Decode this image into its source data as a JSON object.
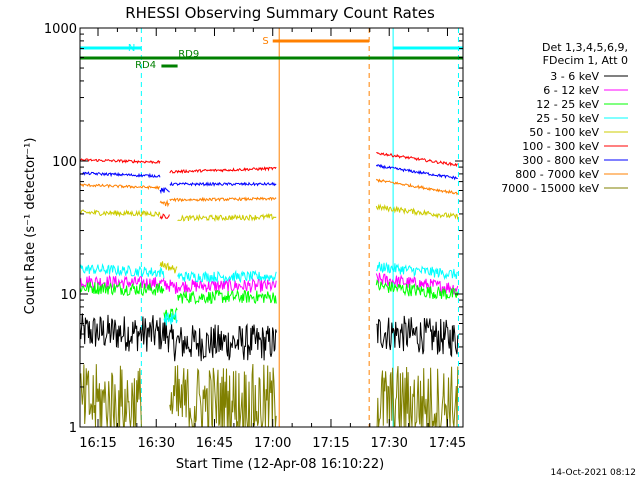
{
  "chart_data": {
    "type": "line",
    "title": "RHESSI Observing Summary Count Rates",
    "xlabel": "Start Time (12-Apr-08 16:10:22)",
    "ylabel": "Count Rate (s⁻¹ detector⁻¹)",
    "y_scale": "log",
    "ylim": [
      1,
      1000
    ],
    "xlim": [
      "16:10:22",
      "17:49:00"
    ],
    "x_ticks": [
      "16:15",
      "16:30",
      "16:45",
      "17:00",
      "17:15",
      "17:30",
      "17:45"
    ],
    "y_ticks": [
      "1",
      "10",
      "100",
      "1000"
    ],
    "footer_date": "14-Oct-2021 08:12",
    "legend": {
      "header": [
        "Det 1,3,4,5,6,9,",
        "FDecim 1, Att 0"
      ],
      "placement": "right"
    },
    "flags": {
      "N": {
        "label": "N",
        "color": "#00ffff",
        "intervals": [
          [
            "16:10:22",
            "16:26:10"
          ],
          [
            "17:31:00",
            "17:49:00"
          ]
        ]
      },
      "S": {
        "label": "S",
        "color": "#ff8000",
        "intervals": [
          [
            "17:00:00",
            "17:24:50"
          ]
        ]
      },
      "RD4": {
        "label": "RD4",
        "color": "#008000",
        "intervals": [
          [
            "16:31:20",
            "16:35:30"
          ]
        ]
      },
      "RD9": {
        "label": "RD9",
        "color": "#008000",
        "intervals": [
          [
            "16:10:22",
            "17:49:00"
          ]
        ]
      }
    },
    "vertical_markers": [
      {
        "time": "16:10:22",
        "color": "#00ffff",
        "style": "solid"
      },
      {
        "time": "16:26:10",
        "color": "#00ffff",
        "style": "dashed"
      },
      {
        "time": "17:01:40",
        "color": "#ff8000",
        "style": "solid"
      },
      {
        "time": "17:24:50",
        "color": "#ff8000",
        "style": "dashed"
      },
      {
        "time": "17:31:00",
        "color": "#00ffff",
        "style": "solid"
      },
      {
        "time": "17:47:50",
        "color": "#00ffff",
        "style": "dashed"
      }
    ],
    "series": [
      {
        "name": "3 - 6 keV",
        "color": "#000000",
        "segments": [
          {
            "t0": "16:10:22",
            "t1": "16:33:10",
            "v0": 5.2,
            "v1": 5.0,
            "noise": 0.14
          },
          {
            "t0": "16:33:10",
            "t1": "17:01:00",
            "v0": 4.3,
            "v1": 4.3,
            "noise": 0.14
          },
          {
            "t0": "17:26:40",
            "t1": "17:47:50",
            "v0": 5.2,
            "v1": 4.6,
            "noise": 0.14
          }
        ]
      },
      {
        "name": "6 - 12 keV",
        "color": "#ff00ff",
        "segments": [
          {
            "t0": "16:10:22",
            "t1": "16:32:00",
            "v0": 12.5,
            "v1": 12.0,
            "noise": 0.05
          },
          {
            "t0": "16:32:00",
            "t1": "16:35:30",
            "v0": 12.0,
            "v1": 11.0,
            "noise": 0.05
          },
          {
            "t0": "16:35:30",
            "t1": "17:01:00",
            "v0": 11.5,
            "v1": 11.5,
            "noise": 0.05
          },
          {
            "t0": "17:26:40",
            "t1": "17:47:50",
            "v0": 13.0,
            "v1": 11.0,
            "noise": 0.05
          }
        ]
      },
      {
        "name": "12 - 25 keV",
        "color": "#00ff00",
        "segments": [
          {
            "t0": "16:10:22",
            "t1": "16:32:00",
            "v0": 11.2,
            "v1": 10.8,
            "noise": 0.05
          },
          {
            "t0": "16:32:00",
            "t1": "16:35:30",
            "v0": 7.0,
            "v1": 7.0,
            "noise": 0.05
          },
          {
            "t0": "16:35:30",
            "t1": "17:01:00",
            "v0": 9.5,
            "v1": 9.5,
            "noise": 0.05
          },
          {
            "t0": "17:26:40",
            "t1": "17:47:50",
            "v0": 11.5,
            "v1": 9.8,
            "noise": 0.05
          }
        ]
      },
      {
        "name": "25 - 50 keV",
        "color": "#00ffff",
        "segments": [
          {
            "t0": "16:10:22",
            "t1": "16:32:00",
            "v0": 15.5,
            "v1": 14.5,
            "noise": 0.04
          },
          {
            "t0": "16:32:00",
            "t1": "16:35:30",
            "v0": 6.5,
            "v1": 6.5,
            "noise": 0.05
          },
          {
            "t0": "16:35:30",
            "t1": "17:01:00",
            "v0": 13.5,
            "v1": 13.5,
            "noise": 0.04
          },
          {
            "t0": "17:26:40",
            "t1": "17:47:50",
            "v0": 16.0,
            "v1": 14.0,
            "noise": 0.04
          }
        ]
      },
      {
        "name": "50 - 100 keV",
        "color": "#cccc00",
        "segments": [
          {
            "t0": "16:10:22",
            "t1": "16:31:00",
            "v0": 41,
            "v1": 40,
            "noise": 0.02
          },
          {
            "t0": "16:31:00",
            "t1": "16:35:30",
            "v0": 17,
            "v1": 15,
            "noise": 0.03
          },
          {
            "t0": "16:35:30",
            "t1": "17:01:00",
            "v0": 37,
            "v1": 38,
            "noise": 0.02
          },
          {
            "t0": "17:26:40",
            "t1": "17:47:50",
            "v0": 45,
            "v1": 38,
            "noise": 0.02
          }
        ]
      },
      {
        "name": "100 - 300 keV",
        "color": "#ff0000",
        "segments": [
          {
            "t0": "16:10:22",
            "t1": "16:31:00",
            "v0": 102,
            "v1": 98,
            "noise": 0.01
          },
          {
            "t0": "16:31:00",
            "t1": "16:33:30",
            "v0": 38,
            "v1": 38,
            "noise": 0.02
          },
          {
            "t0": "16:33:30",
            "t1": "17:01:00",
            "v0": 83,
            "v1": 88,
            "noise": 0.01
          },
          {
            "t0": "17:26:40",
            "t1": "17:47:50",
            "v0": 115,
            "v1": 93,
            "noise": 0.01
          }
        ]
      },
      {
        "name": "300 - 800 keV",
        "color": "#0000ff",
        "segments": [
          {
            "t0": "16:10:22",
            "t1": "16:31:00",
            "v0": 81,
            "v1": 77,
            "noise": 0.01
          },
          {
            "t0": "16:31:00",
            "t1": "16:33:30",
            "v0": 60,
            "v1": 60,
            "noise": 0.02
          },
          {
            "t0": "16:33:30",
            "t1": "17:01:00",
            "v0": 67,
            "v1": 67,
            "noise": 0.01
          },
          {
            "t0": "17:26:40",
            "t1": "17:47:50",
            "v0": 92,
            "v1": 74,
            "noise": 0.01
          }
        ]
      },
      {
        "name": "800 - 7000 keV",
        "color": "#ff8000",
        "segments": [
          {
            "t0": "16:10:22",
            "t1": "16:31:00",
            "v0": 66,
            "v1": 63,
            "noise": 0.01
          },
          {
            "t0": "16:31:00",
            "t1": "16:33:30",
            "v0": 48,
            "v1": 48,
            "noise": 0.02
          },
          {
            "t0": "16:33:30",
            "t1": "17:01:00",
            "v0": 51,
            "v1": 52,
            "noise": 0.01
          },
          {
            "t0": "17:26:40",
            "t1": "17:47:50",
            "v0": 72,
            "v1": 57,
            "noise": 0.01
          }
        ]
      },
      {
        "name": "7000 - 15000 keV",
        "color": "#808000",
        "segments": [
          {
            "t0": "16:10:22",
            "t1": "16:26:10",
            "v0": 1.5,
            "v1": 1.5,
            "noise": 0.3
          },
          {
            "t0": "16:33:30",
            "t1": "17:01:00",
            "v0": 1.5,
            "v1": 1.5,
            "noise": 0.3
          },
          {
            "t0": "17:26:40",
            "t1": "17:47:50",
            "v0": 1.5,
            "v1": 1.5,
            "noise": 0.3
          }
        ]
      }
    ]
  }
}
